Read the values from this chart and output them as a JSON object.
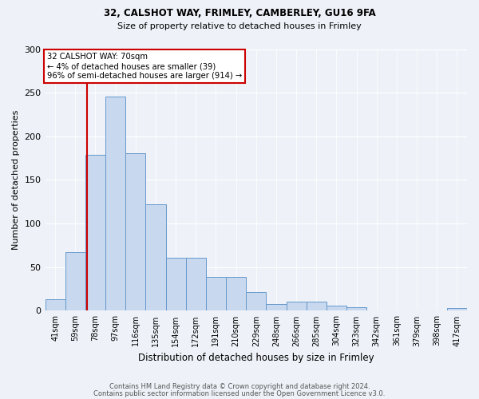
{
  "title1": "32, CALSHOT WAY, FRIMLEY, CAMBERLEY, GU16 9FA",
  "title2": "Size of property relative to detached houses in Frimley",
  "xlabel": "Distribution of detached houses by size in Frimley",
  "ylabel": "Number of detached properties",
  "categories": [
    "41sqm",
    "59sqm",
    "78sqm",
    "97sqm",
    "116sqm",
    "135sqm",
    "154sqm",
    "172sqm",
    "191sqm",
    "210sqm",
    "229sqm",
    "248sqm",
    "266sqm",
    "285sqm",
    "304sqm",
    "323sqm",
    "342sqm",
    "361sqm",
    "379sqm",
    "398sqm",
    "417sqm"
  ],
  "values": [
    13,
    67,
    179,
    246,
    181,
    122,
    61,
    61,
    39,
    39,
    21,
    8,
    10,
    10,
    6,
    4,
    0,
    0,
    0,
    0,
    3
  ],
  "bar_color": "#c8d8ee",
  "bar_edge_color": "#6699cc",
  "annotation_line1": "32 CALSHOT WAY: 70sqm",
  "annotation_line2": "← 4% of detached houses are smaller (39)",
  "annotation_line3": "96% of semi-detached houses are larger (914) →",
  "annotation_box_color": "#ffffff",
  "annotation_box_edge": "#cc0000",
  "marker_line_color": "#cc0000",
  "ylim": [
    0,
    300
  ],
  "yticks": [
    0,
    50,
    100,
    150,
    200,
    250,
    300
  ],
  "background_color": "#eef2f8",
  "footer1": "Contains HM Land Registry data © Crown copyright and database right 2024.",
  "footer2": "Contains public sector information licensed under the Open Government Licence v3.0."
}
